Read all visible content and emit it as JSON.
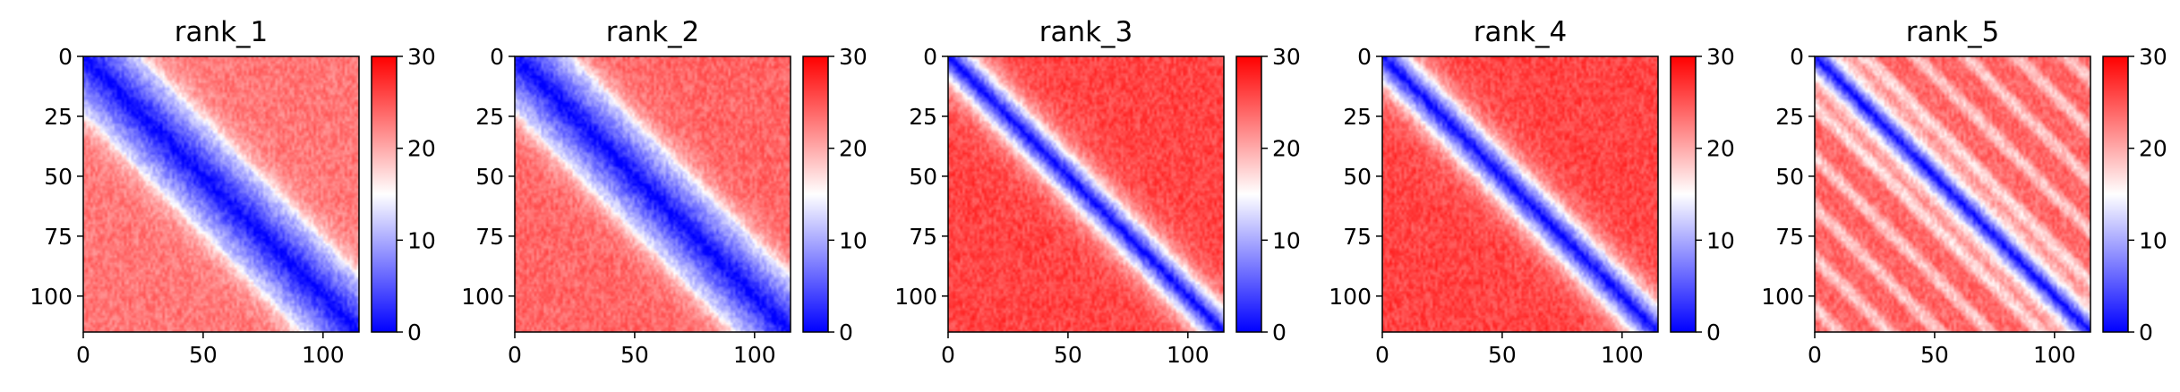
{
  "chart_data": [
    {
      "type": "heatmap",
      "title": "rank_1",
      "xticks": [
        "0",
        "50",
        "100"
      ],
      "yticks": [
        "0",
        "25",
        "50",
        "75",
        "100"
      ],
      "cbar_ticks": [
        "0",
        "10",
        "20",
        "30"
      ],
      "n": 115,
      "vmin": 0,
      "vmax": 30,
      "colormap": "bwr",
      "diag_width": 22,
      "far_level": 23
    },
    {
      "type": "heatmap",
      "title": "rank_2",
      "xticks": [
        "0",
        "50",
        "100"
      ],
      "yticks": [
        "0",
        "25",
        "50",
        "75",
        "100"
      ],
      "cbar_ticks": [
        "0",
        "10",
        "20",
        "30"
      ],
      "n": 115,
      "vmin": 0,
      "vmax": 30,
      "colormap": "bwr",
      "diag_width": 22,
      "far_level": 24
    },
    {
      "type": "heatmap",
      "title": "rank_3",
      "xticks": [
        "0",
        "50",
        "100"
      ],
      "yticks": [
        "0",
        "25",
        "50",
        "75",
        "100"
      ],
      "cbar_ticks": [
        "0",
        "10",
        "20",
        "30"
      ],
      "n": 115,
      "vmin": 0,
      "vmax": 30,
      "colormap": "bwr",
      "diag_width": 9,
      "far_level": 26
    },
    {
      "type": "heatmap",
      "title": "rank_4",
      "xticks": [
        "0",
        "50",
        "100"
      ],
      "yticks": [
        "0",
        "25",
        "50",
        "75",
        "100"
      ],
      "cbar_ticks": [
        "0",
        "10",
        "20",
        "30"
      ],
      "n": 115,
      "vmin": 0,
      "vmax": 30,
      "colormap": "bwr",
      "diag_width": 10,
      "far_level": 26
    },
    {
      "type": "heatmap",
      "title": "rank_5",
      "xticks": [
        "0",
        "50",
        "100"
      ],
      "yticks": [
        "0",
        "25",
        "50",
        "75",
        "100"
      ],
      "cbar_ticks": [
        "0",
        "10",
        "20",
        "30"
      ],
      "n": 115,
      "vmin": 0,
      "vmax": 30,
      "colormap": "bwr",
      "diag_width": 7,
      "far_level": 24
    }
  ]
}
